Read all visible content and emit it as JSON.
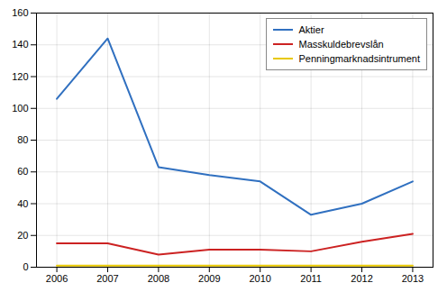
{
  "chart_data": {
    "type": "line",
    "x": [
      2006,
      2007,
      2008,
      2009,
      2010,
      2011,
      2012,
      2013
    ],
    "series": [
      {
        "name": "Aktier",
        "color": "#3070C0",
        "values": [
          106,
          144,
          63,
          58,
          54,
          33,
          40,
          54
        ]
      },
      {
        "name": "Masskuldebrevslån",
        "color": "#CC2222",
        "values": [
          15,
          15,
          8,
          11,
          11,
          10,
          16,
          21
        ]
      },
      {
        "name": "Penningmarknadsintrument",
        "color": "#E8C800",
        "values": [
          1,
          1,
          1,
          1,
          1,
          1,
          1,
          1
        ]
      }
    ],
    "xlim": [
      2005.6,
      2013.4
    ],
    "xticks": [
      2006,
      2007,
      2008,
      2009,
      2010,
      2011,
      2012,
      2013
    ],
    "ylim": [
      0,
      160
    ],
    "yticks": [
      0,
      20,
      40,
      60,
      80,
      100,
      120,
      140,
      160
    ],
    "grid": true,
    "legend": "upper right"
  }
}
